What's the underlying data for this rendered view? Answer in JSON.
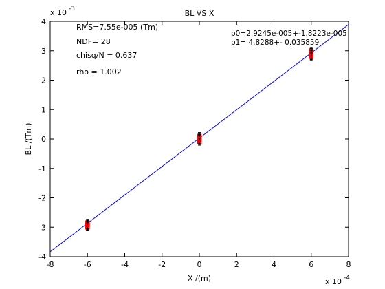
{
  "chart_data": {
    "type": "scatter",
    "title": "BL VS X",
    "xlabel": "X /(m)",
    "ylabel": "BL /(Tm)",
    "x_multiplier": "x 10",
    "x_multiplier_exp": "-4",
    "y_multiplier": "x 10",
    "y_multiplier_exp": "-3",
    "xlim": [
      -8,
      8
    ],
    "ylim": [
      -4,
      4
    ],
    "xticks": [
      "-8",
      "-6",
      "-4",
      "-2",
      "0",
      "2",
      "4",
      "6",
      "8"
    ],
    "yticks": [
      "-4",
      "-3",
      "-2",
      "-1",
      "0",
      "1",
      "2",
      "3",
      "4"
    ],
    "grid": false,
    "fit_line": {
      "slope": 0.48288,
      "intercept": 0.029245,
      "color": "#0000ff"
    },
    "annotations": {
      "rms": "RMS=7.55e-005 (Tm)",
      "ndf": "NDF=   28",
      "chisq": "chisq/N = 0.637",
      "rho": "rho     =  1.002",
      "p0": "p0=2.9245e-005+-1.8223e-005",
      "p1": "p1=   4.8288+- 0.035859"
    },
    "series": [
      {
        "marker_color": "#ff0000",
        "errorbar_color": "#000000",
        "points": [
          {
            "x": -6,
            "y": -2.85,
            "err": 0.12
          },
          {
            "x": -6,
            "y": -2.88,
            "err": 0.12
          },
          {
            "x": -6,
            "y": -2.9,
            "err": 0.13
          },
          {
            "x": -6,
            "y": -2.92,
            "err": 0.12
          },
          {
            "x": -6,
            "y": -2.95,
            "err": 0.13
          },
          {
            "x": -6,
            "y": -2.98,
            "err": 0.12
          },
          {
            "x": -6,
            "y": -3.0,
            "err": 0.12
          },
          {
            "x": -6,
            "y": -2.93,
            "err": 0.12
          },
          {
            "x": -6,
            "y": -2.87,
            "err": 0.12
          },
          {
            "x": -6,
            "y": -2.96,
            "err": 0.13
          },
          {
            "x": 0,
            "y": 0.1,
            "err": 0.12
          },
          {
            "x": 0,
            "y": 0.05,
            "err": 0.12
          },
          {
            "x": 0,
            "y": 0.02,
            "err": 0.12
          },
          {
            "x": 0,
            "y": 0.0,
            "err": 0.13
          },
          {
            "x": 0,
            "y": -0.03,
            "err": 0.12
          },
          {
            "x": 0,
            "y": -0.06,
            "err": 0.12
          },
          {
            "x": 0,
            "y": 0.07,
            "err": 0.13
          },
          {
            "x": 0,
            "y": -0.01,
            "err": 0.12
          },
          {
            "x": 0,
            "y": 0.04,
            "err": 0.12
          },
          {
            "x": 0,
            "y": -0.09,
            "err": 0.12
          },
          {
            "x": 6,
            "y": 3.0,
            "err": 0.12
          },
          {
            "x": 6,
            "y": 2.97,
            "err": 0.12
          },
          {
            "x": 6,
            "y": 2.94,
            "err": 0.13
          },
          {
            "x": 6,
            "y": 2.91,
            "err": 0.12
          },
          {
            "x": 6,
            "y": 2.88,
            "err": 0.12
          },
          {
            "x": 6,
            "y": 2.85,
            "err": 0.13
          },
          {
            "x": 6,
            "y": 2.82,
            "err": 0.12
          },
          {
            "x": 6,
            "y": 2.95,
            "err": 0.12
          },
          {
            "x": 6,
            "y": 2.89,
            "err": 0.12
          },
          {
            "x": 6,
            "y": 2.8,
            "err": 0.13
          }
        ]
      }
    ]
  }
}
